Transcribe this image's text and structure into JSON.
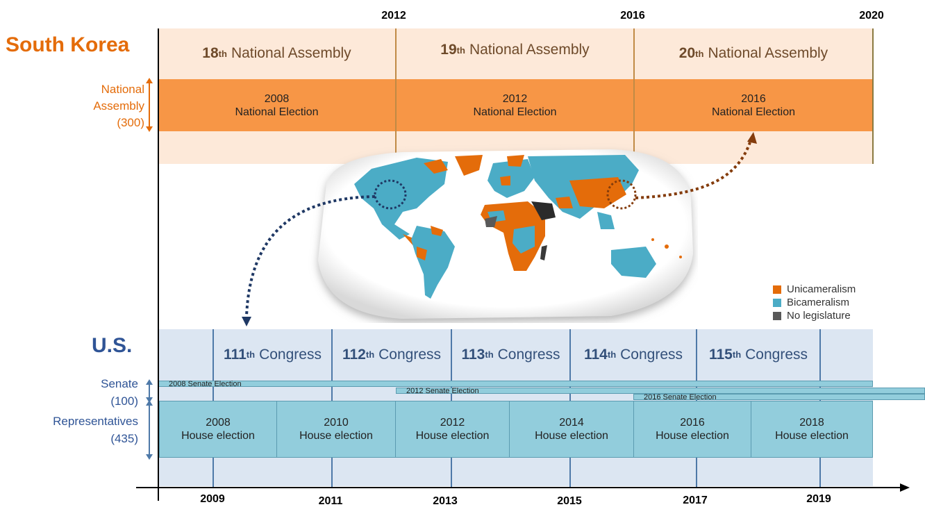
{
  "years_top": [
    "2012",
    "2016",
    "2020"
  ],
  "years_bottom": [
    "2009",
    "2011",
    "2013",
    "2015",
    "2017",
    "2019"
  ],
  "korea": {
    "title": "South Korea",
    "side_label": "National\nAssembly\n(300)",
    "assemblies": [
      {
        "num": "18",
        "sup": "th",
        "text": "National Assembly"
      },
      {
        "num": "19",
        "sup": "th",
        "text": "National Assembly"
      },
      {
        "num": "20",
        "sup": "th",
        "text": "National Assembly"
      }
    ],
    "elections": [
      "2008\nNational Election",
      "2012\nNational Election",
      "2016\nNational Election"
    ]
  },
  "us": {
    "title": "U.S.",
    "senate_label": "Senate\n(100)",
    "house_label": "Representatives\n(435)",
    "congresses": [
      {
        "num": "111",
        "sup": "th",
        "text": "Congress"
      },
      {
        "num": "112",
        "sup": "th",
        "text": "Congress"
      },
      {
        "num": "113",
        "sup": "th",
        "text": "Congress"
      },
      {
        "num": "114",
        "sup": "th",
        "text": "Congress"
      },
      {
        "num": "115",
        "sup": "th",
        "text": "Congress"
      }
    ],
    "senate_elections": [
      "2008 Senate Election",
      "2012 Senate Election",
      "2016 Senate Election"
    ],
    "house_elections": [
      "2008\nHouse election",
      "2010\nHouse election",
      "2012\nHouse election",
      "2014\nHouse election",
      "2016\nHouse election",
      "2018\nHouse election"
    ]
  },
  "legend": [
    {
      "label": "Unicameralism",
      "color": "#e46c0a"
    },
    {
      "label": "Bicameralism",
      "color": "#4bacc6"
    },
    {
      "label": "No legislature",
      "color": "#595959"
    }
  ],
  "colors": {
    "korea_accent": "#e46c0a",
    "us_accent": "#2f5496",
    "election_orange": "#f79646",
    "korea_band": "#fde9d9",
    "us_band": "#dce6f2",
    "house_blue": "#92cddc"
  }
}
